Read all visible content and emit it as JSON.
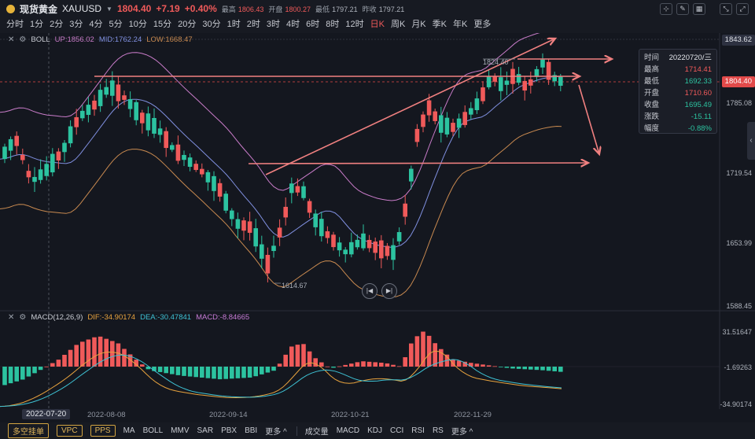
{
  "header": {
    "name": "现货黄金",
    "code": "XAUUSD",
    "price": "1804.40",
    "change": "+7.19",
    "change_pct": "+0.40%",
    "high_label": "最高",
    "high": "1806.43",
    "open_label": "开盘",
    "open": "1800.27",
    "low_label": "最低",
    "low": "1797.21",
    "prev_label": "昨收",
    "prev": "1797.21"
  },
  "periods": [
    "分时",
    "1分",
    "2分",
    "3分",
    "4分",
    "5分",
    "10分",
    "15分",
    "20分",
    "30分",
    "1时",
    "2时",
    "3时",
    "4时",
    "6时",
    "8时",
    "12时",
    "日K",
    "周K",
    "月K",
    "季K",
    "年K",
    "更多"
  ],
  "active_period": "日K",
  "boll": {
    "name": "BOLL",
    "up": "UP:1856.02",
    "mid": "MID:1762.24",
    "low": "LOW:1668.47"
  },
  "macd": {
    "name": "MACD(12,26,9)",
    "dif": "DIF:-34.90174",
    "dea": "DEA:-30.47841",
    "macd": "MACD:-8.84665"
  },
  "price_axis": {
    "top_tag": "1843.62",
    "current_tag": "1804.40",
    "labels": [
      "1785.08",
      "1719.54",
      "1653.99",
      "1588.45"
    ]
  },
  "macd_axis": [
    "31.51647",
    "-1.69263",
    "-34.90174"
  ],
  "annotations": {
    "high_point": "1824.40",
    "low_point": "1614.67"
  },
  "tooltip": [
    {
      "k": "时间",
      "v": "20220720/三",
      "c": "plain"
    },
    {
      "k": "最高",
      "v": "1714.41",
      "c": "red"
    },
    {
      "k": "最低",
      "v": "1692.33",
      "c": "green"
    },
    {
      "k": "开盘",
      "v": "1710.60",
      "c": "red"
    },
    {
      "k": "收盘",
      "v": "1695.49",
      "c": "green"
    },
    {
      "k": "涨跌",
      "v": "-15.11",
      "c": "green"
    },
    {
      "k": "幅度",
      "v": "-0.88%",
      "c": "green"
    }
  ],
  "dates": [
    "2022-08-08",
    "2022-09-14",
    "2022-10-21",
    "2022-11-29"
  ],
  "current_date": "2022-07-20",
  "bottom_bar": {
    "boxes": [
      "多空挂单",
      "VPC",
      "PPS"
    ],
    "main_indicators": [
      "MA",
      "BOLL",
      "MMV",
      "SAR",
      "PBX",
      "BBI",
      "更多 ^"
    ],
    "sub_indicators": [
      "成交量",
      "MACD",
      "KDJ",
      "CCI",
      "RSI",
      "RS",
      "更多 ^"
    ]
  },
  "colors": {
    "up": "#f05a5a",
    "down": "#2cc3a0",
    "boll_up": "#c97cc9",
    "boll_mid": "#8090e0",
    "boll_low": "#c98a50",
    "dif": "#e8a33e",
    "dea": "#3ec2d4",
    "annotation": "#f08080"
  },
  "chart_data": {
    "type": "candlestick",
    "symbol": "XAUUSD",
    "price_axis_ticks": [
      1843.62,
      1785.08,
      1719.54,
      1653.99,
      1588.45
    ],
    "highlighted_candle": {
      "date": "20220720",
      "open": 1710.6,
      "high": 1714.41,
      "low": 1692.33,
      "close": 1695.49
    },
    "marked_high": 1824.4,
    "marked_low": 1614.67,
    "last_price": 1804.4
  }
}
